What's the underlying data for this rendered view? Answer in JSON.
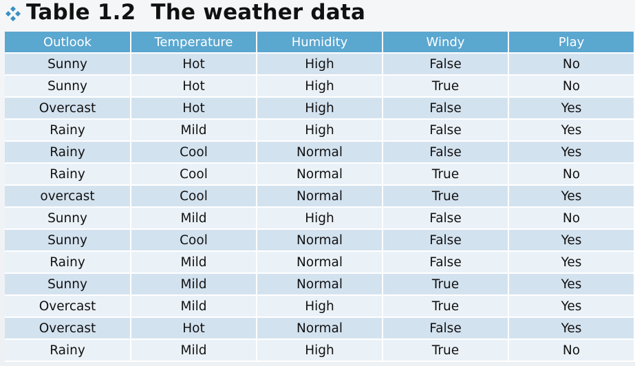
{
  "title": "Table 1.2  The weather data",
  "bullet_icon": "diamond-bullet-icon",
  "colors": {
    "header_bg": "#5aa7d0",
    "row_odd": "#d3e2ef",
    "row_even": "#eaf1f7"
  },
  "table": {
    "headers": [
      "Outlook",
      "Temperature",
      "Humidity",
      "Windy",
      "Play"
    ],
    "rows": [
      [
        "Sunny",
        "Hot",
        "High",
        "False",
        "No"
      ],
      [
        "Sunny",
        "Hot",
        "High",
        "True",
        "No"
      ],
      [
        "Overcast",
        "Hot",
        "High",
        "False",
        "Yes"
      ],
      [
        "Rainy",
        "Mild",
        "High",
        "False",
        "Yes"
      ],
      [
        "Rainy",
        "Cool",
        "Normal",
        "False",
        "Yes"
      ],
      [
        "Rainy",
        "Cool",
        "Normal",
        "True",
        "No"
      ],
      [
        "overcast",
        "Cool",
        "Normal",
        "True",
        "Yes"
      ],
      [
        "Sunny",
        "Mild",
        "High",
        "False",
        "No"
      ],
      [
        "Sunny",
        "Cool",
        "Normal",
        "False",
        "Yes"
      ],
      [
        "Rainy",
        "Mild",
        "Normal",
        "False",
        "Yes"
      ],
      [
        "Sunny",
        "Mild",
        "Normal",
        "True",
        "Yes"
      ],
      [
        "Overcast",
        "Mild",
        "High",
        "True",
        "Yes"
      ],
      [
        "Overcast",
        "Hot",
        "Normal",
        "False",
        "Yes"
      ],
      [
        "Rainy",
        "Mild",
        "High",
        "True",
        "No"
      ]
    ]
  }
}
